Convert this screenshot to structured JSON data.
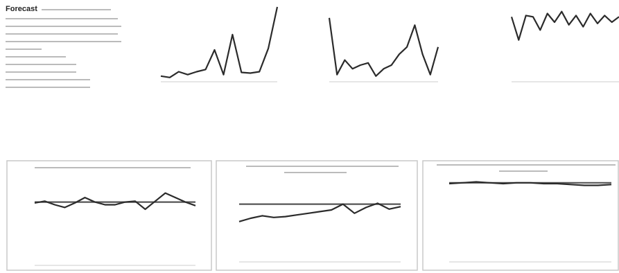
{
  "title": "Forecast",
  "chart_data": [
    {
      "type": "line",
      "ylim": [
        0,
        100
      ],
      "series": [
        {
          "color": "#2b2b2b",
          "values": [
            5,
            3,
            11,
            7,
            11,
            14,
            41,
            7,
            62,
            10,
            9,
            11,
            43,
            100
          ]
        }
      ]
    },
    {
      "type": "line",
      "ylim": [
        0,
        100
      ],
      "series": [
        {
          "color": "#2b2b2b",
          "values": [
            85,
            7,
            27,
            15,
            20,
            23,
            5,
            15,
            20,
            35,
            45,
            75,
            35,
            7,
            45
          ]
        }
      ]
    },
    {
      "type": "line",
      "ylim": [
        0,
        110
      ],
      "series": [
        {
          "color": "#2b2b2b",
          "values": [
            95,
            60,
            97,
            95,
            75,
            100,
            87,
            103,
            83,
            97,
            80,
            100,
            85,
            97,
            87,
            95
          ]
        }
      ]
    },
    {
      "type": "line",
      "ylim": [
        0,
        100
      ],
      "series": [
        {
          "color": "#555555",
          "values": [
            68,
            68,
            68,
            68,
            68,
            68,
            68,
            68,
            68,
            68,
            68,
            68,
            68,
            68,
            68,
            68,
            68
          ]
        },
        {
          "color": "#2b2b2b",
          "values": [
            67,
            69,
            65,
            62,
            67,
            73,
            68,
            65,
            65,
            68,
            69,
            60,
            69,
            78,
            73,
            68,
            64
          ]
        }
      ]
    },
    {
      "type": "line",
      "ylim": [
        0,
        100
      ],
      "series": [
        {
          "color": "#555555",
          "values": [
            67,
            67,
            67,
            67,
            67,
            67,
            67,
            67,
            67,
            67,
            67,
            67,
            67,
            67,
            67
          ]
        },
        {
          "color": "#2b2b2b",
          "values": [
            46,
            50,
            53,
            51,
            52,
            54,
            56,
            58,
            60,
            67,
            56,
            63,
            68,
            61,
            64
          ]
        }
      ]
    },
    {
      "type": "line",
      "ylim": [
        0,
        100
      ],
      "series": [
        {
          "color": "#555555",
          "values": [
            89,
            89,
            89,
            89,
            89,
            89,
            89,
            89,
            89,
            89,
            89,
            89,
            89
          ]
        },
        {
          "color": "#2b2b2b",
          "values": [
            88,
            89,
            90,
            89,
            88,
            89,
            89,
            88,
            88,
            87,
            86,
            86,
            87
          ]
        }
      ]
    }
  ]
}
